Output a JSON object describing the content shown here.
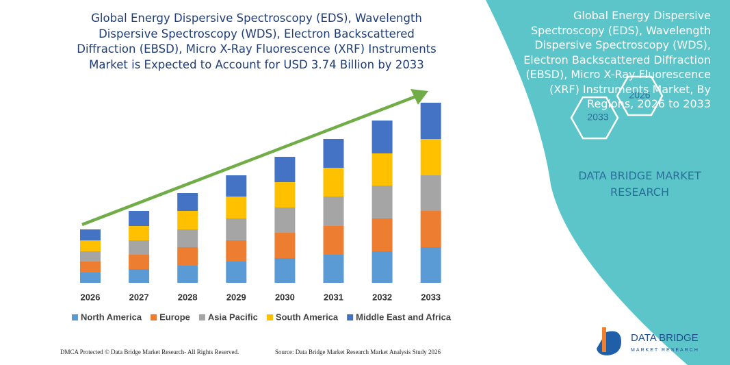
{
  "chart_data": {
    "type": "stacked_bar",
    "title": "Global Energy Dispersive Spectroscopy (EDS), Wavelength Dispersive Spectroscopy (WDS), Electron Backscattered Diffraction (EBSD), Micro X-Ray Fluorescence (XRF) Instruments Market is Expected to Account for USD 3.74 Billion by 2033",
    "categories": [
      "2026",
      "2027",
      "2028",
      "2029",
      "2030",
      "2031",
      "2032",
      "2033"
    ],
    "series": [
      {
        "name": "North America",
        "color": "#5b9bd5",
        "values": [
          15,
          20,
          25,
          31,
          36,
          41,
          46,
          52
        ]
      },
      {
        "name": "Europe",
        "color": "#ed7d31",
        "values": [
          16,
          21,
          27,
          31,
          37,
          42,
          48,
          53
        ]
      },
      {
        "name": "Asia Pacific",
        "color": "#a5a5a5",
        "values": [
          15,
          21,
          26,
          32,
          37,
          43,
          48,
          52
        ]
      },
      {
        "name": "South America",
        "color": "#ffc000",
        "values": [
          16,
          21,
          27,
          32,
          37,
          42,
          47,
          53
        ]
      },
      {
        "name": "Middle East and Africa",
        "color": "#4472c4",
        "values": [
          16,
          22,
          26,
          31,
          37,
          42,
          48,
          53
        ]
      }
    ],
    "legend": "bottom"
  },
  "panel": {
    "title": "Global Energy Dispersive Spectroscopy (EDS), Wavelength Dispersive Spectroscopy (WDS), Electron Backscattered Diffraction (EBSD), Micro X-Ray Fluorescence (XRF) Instruments Market, By Regions, 2026 to 2033",
    "hex_start": "2026",
    "hex_end": "2033",
    "brand": "DATA BRIDGE MARKET RESEARCH"
  },
  "footer": {
    "left": "DMCA Protected © Data Bridge Market Research- All Rights Reserved.",
    "right": "Source: Data Bridge Market Research Market Analysis Study 2026"
  },
  "logo": {
    "name": "DATA BRIDGE",
    "tagline": "MARKET RESEARCH"
  }
}
